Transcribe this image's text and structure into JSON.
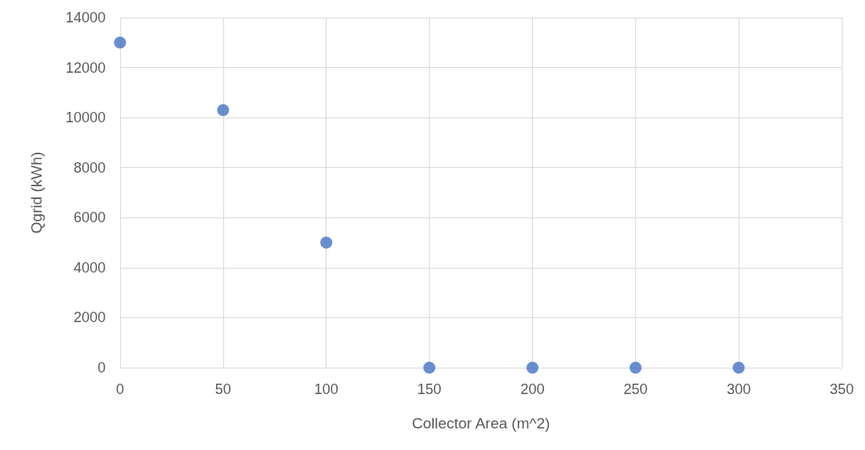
{
  "chart_data": {
    "type": "scatter",
    "xlabel": "Collector Area (m^2)",
    "ylabel": "Qgrid (kWh)",
    "x": [
      0,
      50,
      100,
      150,
      200,
      250,
      300
    ],
    "series": [
      {
        "color": "#4472c4",
        "values": [
          13000,
          10300,
          5000,
          0,
          0,
          0,
          0
        ]
      }
    ],
    "xlim": [
      0,
      350
    ],
    "xticks": [
      0,
      50,
      100,
      150,
      200,
      250,
      300,
      350
    ],
    "ylim": [
      0,
      14000
    ],
    "yticks": [
      0,
      2000,
      4000,
      6000,
      8000,
      10000,
      12000,
      14000
    ],
    "grid": true,
    "marker": "circle"
  }
}
